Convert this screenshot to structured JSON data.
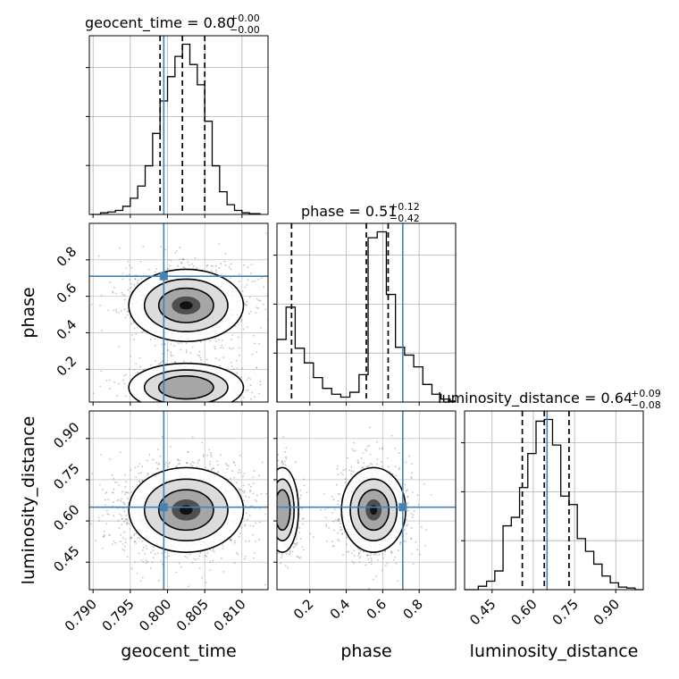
{
  "chart_data": {
    "type": "corner",
    "parameters": [
      "geocent_time",
      "phase",
      "luminosity_distance"
    ],
    "truths": {
      "geocent_time": 0.7995,
      "phase": 0.71,
      "luminosity_distance": 0.65
    },
    "colors": {
      "truth": "#4682b4",
      "hist": "#000000",
      "grid": "#b0b0b0",
      "quantile": "#000000"
    },
    "grid": true,
    "titles": [
      {
        "param": "geocent_time",
        "text": "geocent_time = 0.80",
        "sup": "+0.00",
        "sub": "−0.00"
      },
      {
        "param": "phase",
        "text": "phase = 0.51",
        "sup": "+0.12",
        "sub": "−0.42"
      },
      {
        "param": "luminosity_distance",
        "text": "luminosity_distance = 0.64",
        "sup": "+0.09",
        "sub": "−0.08"
      }
    ],
    "axis_labels": {
      "x": [
        "geocent_time",
        "phase",
        "luminosity_distance"
      ],
      "y": [
        "phase",
        "luminosity_distance"
      ]
    },
    "ranges": {
      "geocent_time": [
        0.7895,
        0.8135
      ],
      "phase": [
        0.02,
        1.0
      ],
      "luminosity_distance": [
        0.35,
        1.0
      ]
    },
    "tick_labels": {
      "geocent_time": [
        "0.790",
        "0.795",
        "0.800",
        "0.805",
        "0.810"
      ],
      "phase": [
        "0.2",
        "0.4",
        "0.6",
        "0.8"
      ],
      "luminosity_distance": [
        "0.45",
        "0.60",
        "0.75",
        "0.90"
      ]
    },
    "quantiles": {
      "geocent_time": [
        0.799,
        0.802,
        0.805
      ],
      "phase": [
        0.1,
        0.51,
        0.63
      ],
      "luminosity_distance": [
        0.56,
        0.64,
        0.73
      ]
    },
    "histograms": {
      "geocent_time": {
        "edges": [
          0.7897,
          0.791,
          0.792,
          0.793,
          0.794,
          0.795,
          0.796,
          0.797,
          0.798,
          0.799,
          0.8,
          0.801,
          0.802,
          0.803,
          0.804,
          0.805,
          0.806,
          0.807,
          0.808,
          0.809,
          0.81,
          0.811,
          0.8125
        ],
        "counts": [
          0,
          2,
          3,
          5,
          10,
          20,
          35,
          60,
          100,
          140,
          170,
          195,
          210,
          185,
          160,
          115,
          60,
          28,
          12,
          5,
          2,
          1
        ]
      },
      "phase": {
        "edges": [
          0.02,
          0.07,
          0.12,
          0.17,
          0.22,
          0.27,
          0.32,
          0.37,
          0.42,
          0.47,
          0.52,
          0.57,
          0.62,
          0.67,
          0.72,
          0.77,
          0.82,
          0.87,
          0.92,
          0.97,
          1.0
        ],
        "counts": [
          64,
          97,
          55,
          40,
          25,
          14,
          8,
          5,
          10,
          28,
          168,
          174,
          110,
          56,
          48,
          36,
          18,
          8,
          3,
          1
        ]
      },
      "luminosity_distance": {
        "edges": [
          0.35,
          0.4,
          0.43,
          0.46,
          0.49,
          0.52,
          0.55,
          0.58,
          0.61,
          0.64,
          0.67,
          0.7,
          0.73,
          0.76,
          0.79,
          0.82,
          0.85,
          0.88,
          0.91,
          0.94,
          0.97,
          1.0
        ],
        "counts": [
          0,
          4,
          10,
          22,
          75,
          85,
          120,
          160,
          198,
          200,
          170,
          110,
          100,
          60,
          45,
          30,
          16,
          8,
          3,
          2,
          0
        ]
      }
    },
    "density_2d": [
      {
        "x": "geocent_time",
        "y": "phase",
        "modes": [
          {
            "x": 0.8025,
            "y": 0.55,
            "sx": 0.0035,
            "sy": 0.09,
            "weight": 1.0
          },
          {
            "x": 0.8025,
            "y": 0.1,
            "sx": 0.0035,
            "sy": 0.06,
            "weight": 0.45
          }
        ]
      },
      {
        "x": "geocent_time",
        "y": "luminosity_distance",
        "modes": [
          {
            "x": 0.8025,
            "y": 0.64,
            "sx": 0.0035,
            "sy": 0.07,
            "weight": 1.0
          }
        ]
      },
      {
        "x": "phase",
        "y": "luminosity_distance",
        "modes": [
          {
            "x": 0.55,
            "y": 0.64,
            "sx": 0.08,
            "sy": 0.07,
            "weight": 1.0
          },
          {
            "x": 0.05,
            "y": 0.64,
            "sx": 0.04,
            "sy": 0.07,
            "weight": 0.45
          }
        ]
      }
    ]
  }
}
